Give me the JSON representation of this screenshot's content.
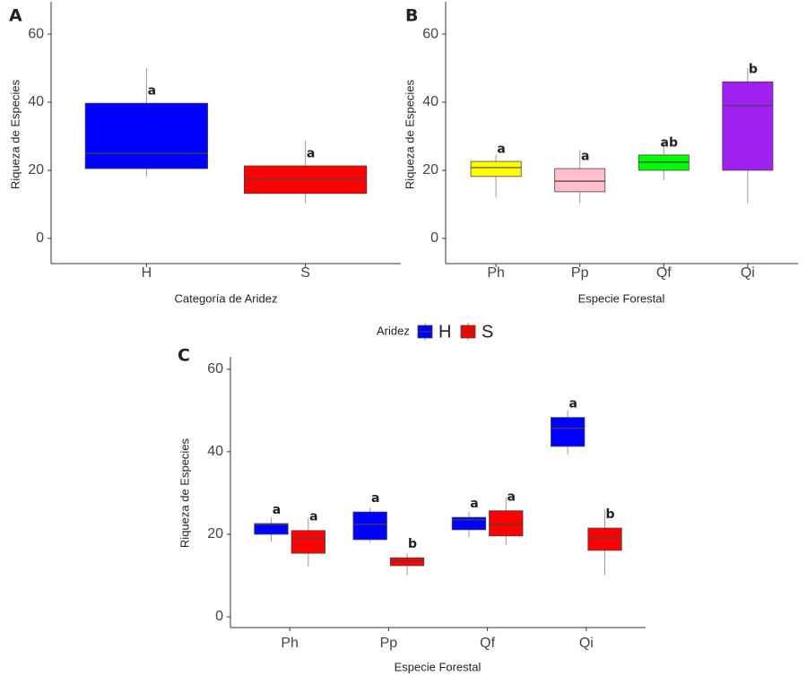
{
  "chart_data": [
    {
      "type": "box",
      "panel_label": "A",
      "xlabel": "Categoría de Aridez",
      "ylabel": "Riqueza de Especies",
      "categories": [
        "H",
        "S"
      ],
      "ylim": [
        -7.4,
        69.5
      ],
      "yticks": [
        0,
        20,
        40,
        60
      ],
      "series": [
        {
          "colors": [
            "#0000ff",
            "#ff0000"
          ],
          "min": [
            18.2,
            10.3
          ],
          "q1": [
            20.5,
            13.2
          ],
          "median": [
            25,
            17.4
          ],
          "q3": [
            39.7,
            21.3
          ],
          "max": [
            50,
            28.7
          ],
          "letters": [
            "a",
            "a"
          ]
        }
      ]
    },
    {
      "type": "box",
      "panel_label": "B",
      "xlabel": "Especie Forestal",
      "ylabel": "Riqueza de Especies",
      "categories": [
        "Ph",
        "Pp",
        "Qf",
        "Qi"
      ],
      "ylim": [
        -7.4,
        69.5
      ],
      "yticks": [
        0,
        20,
        40,
        60
      ],
      "series": [
        {
          "colors": [
            "#ffff00",
            "#ffc0cb",
            "#00ff00",
            "#a020f0"
          ],
          "min": [
            12.1,
            10.3,
            17.1,
            10.3
          ],
          "q1": [
            18.2,
            13.7,
            20,
            20
          ],
          "median": [
            20.8,
            16.8,
            22.4,
            39
          ],
          "q3": [
            22.6,
            20.5,
            24.5,
            46
          ],
          "max": [
            24.5,
            26,
            28.7,
            50
          ],
          "letters": [
            "a",
            "a",
            "ab",
            "b"
          ]
        }
      ]
    },
    {
      "type": "box",
      "panel_label": "C",
      "xlabel": "Especie Forestal",
      "ylabel": "Riqueza de Especies",
      "legend_title": "Aridez",
      "categories": [
        "Ph",
        "Pp",
        "Qf",
        "Qi"
      ],
      "ylim": [
        -2.6,
        63
      ],
      "yticks": [
        0,
        20,
        40,
        60
      ],
      "series": [
        {
          "name": "H",
          "color": "#0000ff",
          "min": [
            18.3,
            18,
            19.3,
            39.3
          ],
          "q1": [
            20,
            18.7,
            21.1,
            41.3
          ],
          "median": [
            22.4,
            22.4,
            23.5,
            45.7
          ],
          "q3": [
            22.6,
            25.4,
            24.1,
            48.3
          ],
          "max": [
            24,
            26.5,
            25.4,
            50
          ],
          "letters": [
            "a",
            "a",
            "a",
            "a"
          ]
        },
        {
          "name": "S",
          "color": "#ff0000",
          "min": [
            12.2,
            10,
            17.4,
            10.2
          ],
          "q1": [
            15.4,
            12.4,
            19.6,
            16.1
          ],
          "median": [
            19.1,
            13.5,
            22.4,
            19.1
          ],
          "q3": [
            20.9,
            14.3,
            25.7,
            21.5
          ],
          "max": [
            24,
            15.4,
            28.9,
            26
          ],
          "letters": [
            "a",
            "b",
            "a",
            "b"
          ]
        }
      ]
    }
  ]
}
